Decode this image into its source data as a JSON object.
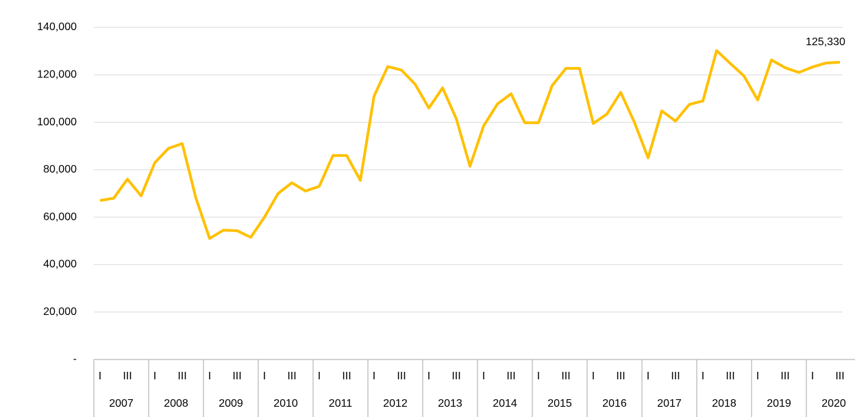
{
  "chart_data": {
    "type": "line",
    "categories": [
      "I",
      null,
      "III",
      null,
      "I",
      null,
      "III",
      null,
      "I",
      null,
      "III",
      null,
      "I",
      null,
      "III",
      null,
      "I",
      null,
      "III",
      null,
      "I",
      null,
      "III",
      null,
      "I",
      null,
      "III",
      null,
      "I",
      null,
      "III",
      null,
      "I",
      null,
      "III",
      null,
      "I",
      null,
      "III",
      null,
      "I",
      null,
      "III",
      null,
      "I",
      null,
      "III",
      null,
      "I",
      null,
      "III",
      null,
      "I",
      null,
      "III"
    ],
    "year_groups": [
      "2007",
      "2008",
      "2009",
      "2010",
      "2011",
      "2012",
      "2013",
      "2014",
      "2015",
      "2016",
      "2017",
      "2018",
      "2019",
      "2020"
    ],
    "series": [
      {
        "color": "#FFC000",
        "values": [
          67000,
          68000,
          76000,
          69000,
          83000,
          89000,
          91000,
          68000,
          51000,
          54500,
          54300,
          51500,
          60000,
          70000,
          74500,
          71000,
          73000,
          86000,
          86000,
          75500,
          111000,
          123500,
          122000,
          116000,
          106000,
          114500,
          101500,
          81500,
          98500,
          107700,
          112000,
          99800,
          99800,
          115500,
          122700,
          122700,
          99500,
          103500,
          112600,
          100000,
          85000,
          104800,
          100500,
          107500,
          109000,
          130200,
          124800,
          119500,
          109400,
          126300,
          123000,
          121000,
          123300,
          125000,
          125330
        ],
        "value_labels": [
          null,
          null,
          null,
          null,
          null,
          null,
          null,
          null,
          null,
          null,
          null,
          null,
          null,
          null,
          null,
          null,
          null,
          null,
          null,
          null,
          null,
          null,
          null,
          null,
          null,
          null,
          null,
          null,
          null,
          null,
          null,
          null,
          null,
          null,
          null,
          null,
          null,
          null,
          null,
          null,
          null,
          null,
          null,
          null,
          null,
          null,
          null,
          null,
          null,
          null,
          null,
          null,
          null,
          null,
          "125,330"
        ]
      }
    ],
    "ylim": [
      0,
      140000
    ],
    "yticks": [
      {
        "value": 0,
        "label": "-"
      },
      {
        "value": 20000,
        "label": "20,000"
      },
      {
        "value": 40000,
        "label": "40,000"
      },
      {
        "value": 60000,
        "label": "60,000"
      },
      {
        "value": 80000,
        "label": "80,000"
      },
      {
        "value": 100000,
        "label": "100,000"
      },
      {
        "value": 120000,
        "label": "120,000"
      },
      {
        "value": 140000,
        "label": "140,000"
      }
    ],
    "grid": true
  }
}
